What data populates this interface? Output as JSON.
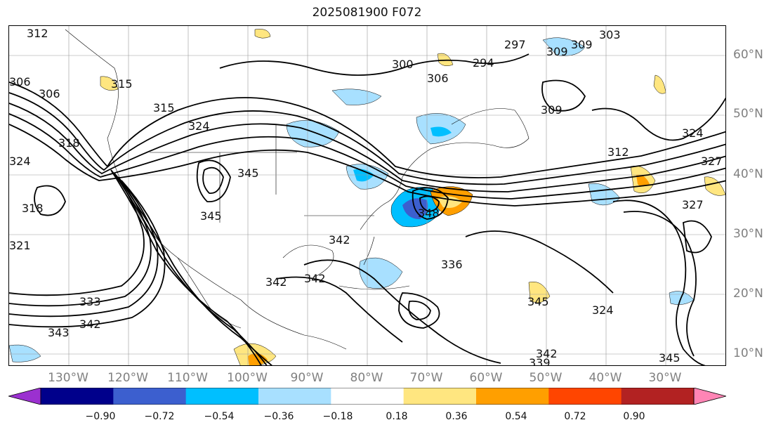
{
  "title": "2025081900 F072",
  "lat_labels": [
    "60°N",
    "50°N",
    "40°N",
    "30°N",
    "20°N",
    "10°N"
  ],
  "lon_labels": [
    "130°W",
    "120°W",
    "110°W",
    "100°W",
    "90°W",
    "80°W",
    "70°W",
    "60°W",
    "50°W",
    "40°W",
    "30°W"
  ],
  "colorbar": {
    "ticks": [
      "−0.90",
      "−0.72",
      "−0.54",
      "−0.36",
      "−0.18",
      "0.18",
      "0.36",
      "0.54",
      "0.72",
      "0.90"
    ],
    "colors": [
      "#9b30d0",
      "#00008b",
      "#3c5fcf",
      "#00bfff",
      "#a8e0ff",
      "#ffffff",
      "#ffe680",
      "#ff9f00",
      "#ff4500",
      "#b22222",
      "#ff85b5"
    ]
  },
  "contour_labels": [
    "312",
    "315",
    "306",
    "306",
    "318",
    "324",
    "315",
    "324",
    "345",
    "345",
    "300",
    "306",
    "294",
    "297",
    "309",
    "309",
    "303",
    "309",
    "312",
    "324",
    "327",
    "327",
    "318",
    "321",
    "348",
    "342",
    "342",
    "342",
    "336",
    "345",
    "333",
    "343",
    "342",
    "339",
    "342",
    "324",
    "345"
  ]
}
